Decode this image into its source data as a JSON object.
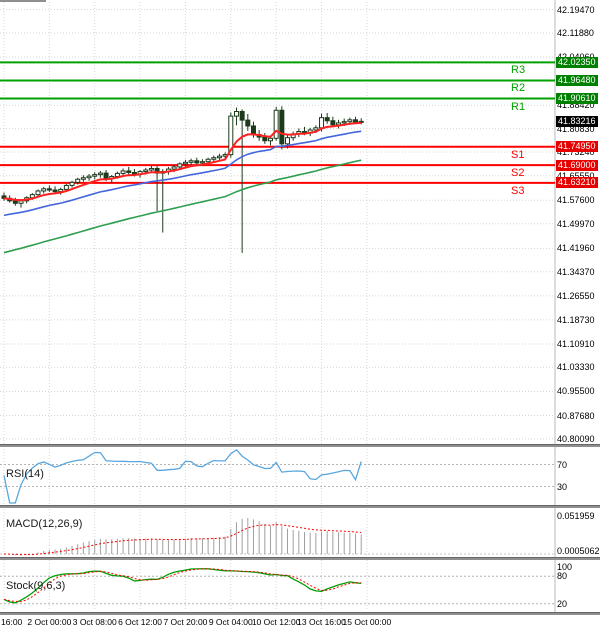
{
  "chart_data": {
    "type": "candlestick",
    "current_price": "41.83216",
    "price_axis_labels": [
      "42.19470",
      "42.11880",
      "42.04060",
      "41.88420",
      "41.80830",
      "41.73240",
      "41.65550",
      "41.57600",
      "41.49970",
      "41.41960",
      "41.34370",
      "41.26550",
      "41.18730",
      "41.10910",
      "41.03330",
      "40.95500",
      "40.87680",
      "40.80090"
    ],
    "time_labels": [
      "16:00",
      "2 Oct 00:00",
      "3 Oct 08:00",
      "6 Oct 12:00",
      "7 Oct 20:00",
      "9 Oct 04:00",
      "10 Oct 12:00",
      "13 Oct 16:00",
      "15 Oct 00:00"
    ],
    "levels": [
      {
        "name": "R3",
        "value": 42.0235,
        "label": "42.02350",
        "type": "resistance"
      },
      {
        "name": "R2",
        "value": 41.9648,
        "label": "41.96480",
        "type": "resistance"
      },
      {
        "name": "R1",
        "value": 41.9061,
        "label": "41.90610",
        "type": "resistance"
      },
      {
        "name": "S1",
        "value": 41.7495,
        "label": "41.74950",
        "type": "support"
      },
      {
        "name": "S2",
        "value": 41.69,
        "label": "41.69000",
        "type": "support"
      },
      {
        "name": "S3",
        "value": 41.6321,
        "label": "41.63210",
        "type": "support"
      }
    ],
    "colors": {
      "resistance_line": "#00a000",
      "support_line": "#ff0000",
      "resistance_tag_bg": "#008000",
      "support_tag_bg": "#e60000",
      "current_tag_bg": "#000000",
      "fast_ma": "#ff2020",
      "mid_ma": "#4466dd",
      "slow_ma": "#2f9e4f",
      "rsi_line": "#5aa7dd",
      "macd_hist": "#a0a0a0",
      "macd_signal": "#ff0000",
      "stoch_main": "#00a000",
      "stoch_signal": "#ff0000",
      "bull_body": "#ffffff",
      "bear_body": "#1c3b1c",
      "candle_border": "#1c3b1c"
    },
    "candles_ohlc": [
      [
        41.59,
        41.601,
        41.574,
        41.582
      ],
      [
        41.582,
        41.592,
        41.568,
        41.574
      ],
      [
        41.574,
        41.584,
        41.558,
        41.566
      ],
      [
        41.566,
        41.578,
        41.552,
        41.574
      ],
      [
        41.574,
        41.589,
        41.566,
        41.584
      ],
      [
        41.584,
        41.599,
        41.577,
        41.594
      ],
      [
        41.594,
        41.611,
        41.588,
        41.606
      ],
      [
        41.606,
        41.619,
        41.598,
        41.613
      ],
      [
        41.613,
        41.624,
        41.603,
        41.609
      ],
      [
        41.609,
        41.621,
        41.596,
        41.604
      ],
      [
        41.604,
        41.617,
        41.594,
        41.611
      ],
      [
        41.611,
        41.629,
        41.606,
        41.624
      ],
      [
        41.624,
        41.639,
        41.617,
        41.634
      ],
      [
        41.634,
        41.649,
        41.627,
        41.644
      ],
      [
        41.644,
        41.657,
        41.636,
        41.649
      ],
      [
        41.649,
        41.661,
        41.639,
        41.654
      ],
      [
        41.654,
        41.667,
        41.644,
        41.659
      ],
      [
        41.659,
        41.671,
        41.649,
        41.664
      ],
      [
        41.664,
        41.674,
        41.638,
        41.646
      ],
      [
        41.646,
        41.658,
        41.633,
        41.653
      ],
      [
        41.653,
        41.669,
        41.646,
        41.663
      ],
      [
        41.663,
        41.679,
        41.656,
        41.671
      ],
      [
        41.671,
        41.684,
        41.658,
        41.666
      ],
      [
        41.666,
        41.677,
        41.653,
        41.661
      ],
      [
        41.661,
        41.674,
        41.649,
        41.669
      ],
      [
        41.669,
        41.681,
        41.659,
        41.674
      ],
      [
        41.674,
        41.687,
        41.664,
        41.679
      ],
      [
        41.679,
        41.689,
        41.541,
        41.664
      ],
      [
        41.664,
        41.677,
        41.471,
        41.669
      ],
      [
        41.669,
        41.684,
        41.659,
        41.677
      ],
      [
        41.677,
        41.691,
        41.667,
        41.684
      ],
      [
        41.684,
        41.699,
        41.674,
        41.694
      ],
      [
        41.694,
        41.707,
        41.684,
        41.699
      ],
      [
        41.699,
        41.711,
        41.689,
        41.704
      ],
      [
        41.704,
        41.714,
        41.691,
        41.697
      ],
      [
        41.697,
        41.709,
        41.687,
        41.701
      ],
      [
        41.701,
        41.714,
        41.694,
        41.709
      ],
      [
        41.709,
        41.721,
        41.699,
        41.714
      ],
      [
        41.714,
        41.727,
        41.704,
        41.719
      ],
      [
        41.719,
        41.731,
        41.709,
        41.724
      ],
      [
        41.724,
        41.861,
        41.714,
        41.849
      ],
      [
        41.849,
        41.877,
        41.819,
        41.864
      ],
      [
        41.864,
        41.871,
        41.405,
        41.836
      ],
      [
        41.836,
        41.856,
        41.801,
        41.817
      ],
      [
        41.817,
        41.831,
        41.779,
        41.789
      ],
      [
        41.789,
        41.804,
        41.769,
        41.781
      ],
      [
        41.781,
        41.794,
        41.759,
        41.769
      ],
      [
        41.769,
        41.784,
        41.754,
        41.777
      ],
      [
        41.777,
        41.879,
        41.769,
        41.868
      ],
      [
        41.868,
        41.881,
        41.741,
        41.759
      ],
      [
        41.759,
        41.789,
        41.744,
        41.779
      ],
      [
        41.779,
        41.799,
        41.769,
        41.791
      ],
      [
        41.791,
        41.809,
        41.781,
        41.799
      ],
      [
        41.799,
        41.814,
        41.787,
        41.794
      ],
      [
        41.794,
        41.811,
        41.784,
        41.804
      ],
      [
        41.804,
        41.819,
        41.794,
        41.811
      ],
      [
        41.811,
        41.857,
        41.799,
        41.844
      ],
      [
        41.844,
        41.859,
        41.824,
        41.834
      ],
      [
        41.834,
        41.847,
        41.814,
        41.821
      ],
      [
        41.821,
        41.837,
        41.809,
        41.827
      ],
      [
        41.827,
        41.841,
        41.817,
        41.831
      ],
      [
        41.831,
        41.844,
        41.821,
        41.837
      ],
      [
        41.837,
        41.847,
        41.824,
        41.83
      ],
      [
        41.83,
        41.842,
        41.822,
        41.832
      ]
    ],
    "overlays": [
      {
        "role": "fast-ma",
        "color": "#ff2020"
      },
      {
        "role": "mid-ma",
        "color": "#4466dd"
      },
      {
        "role": "slow-ma",
        "color": "#2f9e4f"
      }
    ],
    "panels": [
      {
        "name": "RSI(14)",
        "levels": [
          70,
          30
        ],
        "axis_labels": [
          "70",
          "30"
        ]
      },
      {
        "name": "MACD(12,26,9)",
        "axis_labels": [
          "0.051959",
          "0.0005062"
        ]
      },
      {
        "name": "Stock(9,6,3)",
        "levels": [
          80,
          20
        ],
        "axis_labels": [
          "100",
          "80",
          "20"
        ]
      }
    ]
  }
}
